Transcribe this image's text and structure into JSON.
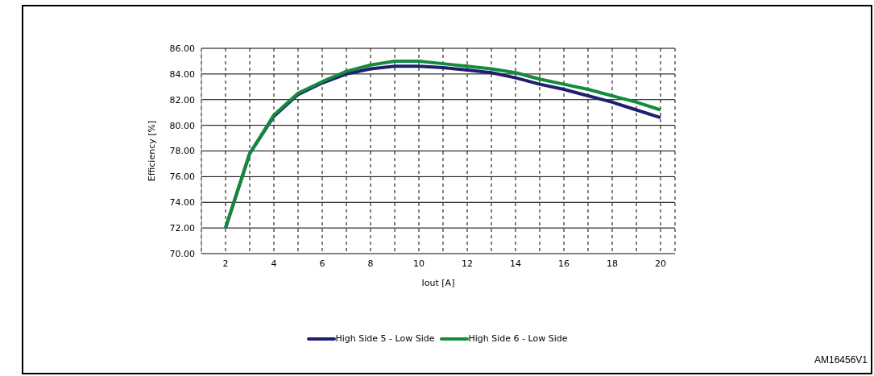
{
  "chart_data": {
    "type": "line",
    "xlabel": "Iout [A]",
    "ylabel": "Efficiency [%]",
    "x": [
      2,
      3,
      4,
      5,
      6,
      7,
      8,
      9,
      10,
      11,
      12,
      13,
      14,
      15,
      16,
      17,
      18,
      19,
      20
    ],
    "series": [
      {
        "name": "High Side 5 - Low  Side",
        "color": "#1f1f6e",
        "values": [
          72.0,
          77.8,
          80.7,
          82.4,
          83.3,
          84.0,
          84.4,
          84.6,
          84.6,
          84.5,
          84.3,
          84.1,
          83.7,
          83.2,
          82.8,
          82.3,
          81.8,
          81.2,
          80.6
        ]
      },
      {
        "name": "High Side 6 - Low  Side",
        "color": "#138a3c",
        "values": [
          72.0,
          77.8,
          80.8,
          82.5,
          83.4,
          84.2,
          84.7,
          85.0,
          85.0,
          84.8,
          84.6,
          84.4,
          84.1,
          83.6,
          83.2,
          82.8,
          82.3,
          81.8,
          81.2
        ]
      }
    ],
    "xlim": [
      1,
      20.6
    ],
    "xticks": [
      {
        "value": 1,
        "label": null
      },
      2,
      {
        "value": 3,
        "label": null
      },
      4,
      {
        "value": 5,
        "label": null
      },
      6,
      {
        "value": 7,
        "label": null
      },
      8,
      {
        "value": 9,
        "label": null
      },
      10,
      {
        "value": 11,
        "label": null
      },
      12,
      {
        "value": 13,
        "label": null
      },
      14,
      {
        "value": 15,
        "label": null
      },
      16,
      {
        "value": 17,
        "label": null
      },
      18,
      {
        "value": 19,
        "label": null
      },
      20
    ],
    "ylim": [
      70,
      86
    ],
    "yticks": [
      {
        "value": 70,
        "label": "70.00"
      },
      {
        "value": 72,
        "label": "72.00"
      },
      {
        "value": 74,
        "label": "74.00"
      },
      {
        "value": 76,
        "label": "76.00"
      },
      {
        "value": 78,
        "label": "78.00"
      },
      {
        "value": 80,
        "label": "80.00"
      },
      {
        "value": 82,
        "label": "82.00"
      },
      {
        "value": 84,
        "label": "84.00"
      },
      {
        "value": 86,
        "label": "86.00"
      }
    ],
    "grid": true,
    "legend": "bottom",
    "marker": "none",
    "line_style": "solid",
    "annotations": [
      "AM16456V1"
    ]
  }
}
